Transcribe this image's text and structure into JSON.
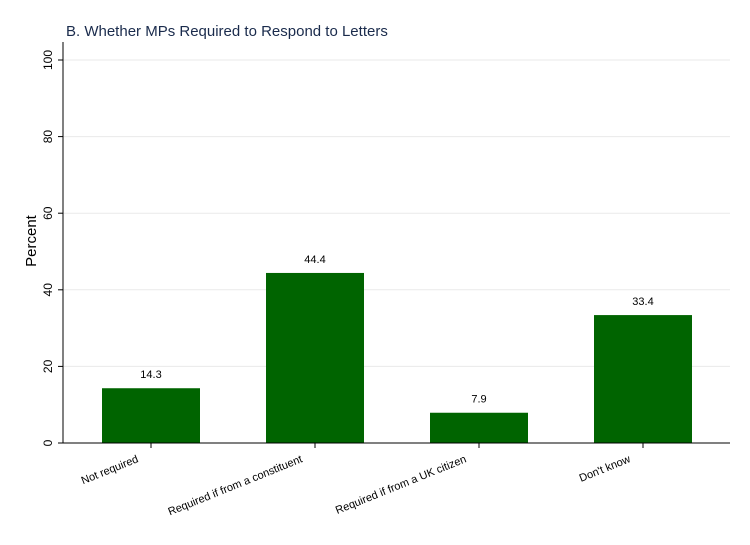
{
  "chart_data": {
    "type": "bar",
    "title": "B. Whether MPs Required to Respond to Letters",
    "xlabel": "",
    "ylabel": "Percent",
    "categories": [
      "Not required",
      "Required if from a constituent",
      "Required if from a UK citizen",
      "Don't know"
    ],
    "values": [
      14.3,
      44.4,
      7.9,
      33.4
    ],
    "data_labels": [
      "14.3",
      "44.4",
      "7.9",
      "33.4"
    ],
    "ylim": [
      0,
      100
    ],
    "yticks": [
      0,
      20,
      40,
      60,
      80,
      100
    ],
    "ytick_labels": [
      "0",
      "20",
      "40",
      "60",
      "80",
      "100"
    ],
    "grid": true,
    "colors": {
      "bar": "#006400",
      "grid": "#eaeaea",
      "axis": "#000000",
      "title": "#1a2b4c"
    }
  }
}
